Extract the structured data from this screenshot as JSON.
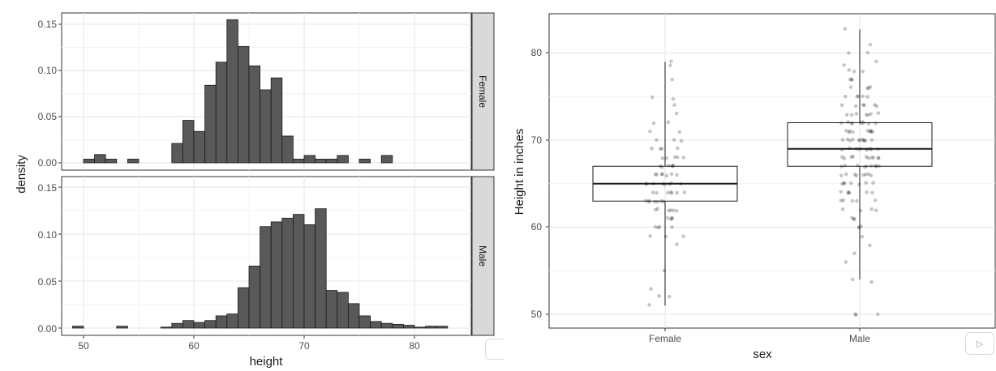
{
  "chart_data": [
    {
      "type": "histogram",
      "facet_by": "sex",
      "xlabel": "height",
      "ylabel": "density",
      "xlim": [
        47.5,
        85.5
      ],
      "ylim": [
        0,
        0.16
      ],
      "x_ticks": [
        50,
        60,
        70,
        80
      ],
      "y_ticks": [
        0.0,
        0.05,
        0.1,
        0.15
      ],
      "x_tick_labels": [
        "50",
        "60",
        "70",
        "80"
      ],
      "y_tick_labels": [
        "0.00",
        "0.05",
        "0.10",
        "0.15"
      ],
      "bin_width": 1,
      "bin_start": 49,
      "panels": [
        {
          "label": "Female",
          "densities": [
            0,
            0.004,
            0.009,
            0.004,
            0,
            0.004,
            0,
            0,
            0,
            0.021,
            0.046,
            0.034,
            0.084,
            0.109,
            0.155,
            0.126,
            0.105,
            0.079,
            0.092,
            0.029,
            0.004,
            0.008,
            0.004,
            0.004,
            0.008,
            0,
            0.004,
            0,
            0.008,
            0,
            0,
            0,
            0,
            0
          ]
        },
        {
          "label": "Male",
          "densities": [
            0.002,
            0,
            0,
            0,
            0.002,
            0,
            0,
            0,
            0.001,
            0.005,
            0.008,
            0.006,
            0.008,
            0.013,
            0.015,
            0.043,
            0.066,
            0.108,
            0.113,
            0.117,
            0.121,
            0.11,
            0.127,
            0.04,
            0.038,
            0.026,
            0.013,
            0.007,
            0.005,
            0.004,
            0.003,
            0.001,
            0.002,
            0.002
          ]
        }
      ]
    },
    {
      "type": "boxplot",
      "overlay": "jitter points",
      "xlabel": "sex",
      "ylabel": "Height in inches",
      "categories": [
        "Female",
        "Male"
      ],
      "ylim": [
        48.5,
        84.2
      ],
      "y_ticks": [
        50,
        60,
        70,
        80
      ],
      "y_tick_labels": [
        "50",
        "60",
        "70",
        "80"
      ],
      "boxes": [
        {
          "name": "Female",
          "q1": 63,
          "median": 65,
          "q3": 67,
          "whisker_low": 51,
          "whisker_high": 79
        },
        {
          "name": "Male",
          "q1": 67,
          "median": 69,
          "q3": 72,
          "whisker_low": 54,
          "whisker_high": 82.7
        }
      ],
      "points": [
        {
          "name": "Female",
          "values": [
            79,
            78.7,
            77,
            75,
            74.8,
            74,
            73,
            72,
            72,
            71,
            71,
            70,
            70,
            70,
            69,
            69,
            69,
            69,
            68,
            68,
            68,
            68,
            68,
            67,
            67,
            67,
            67,
            67,
            67,
            66,
            66,
            66,
            66,
            66,
            66,
            66,
            65,
            65,
            65,
            65,
            65,
            65,
            65,
            65,
            64,
            64,
            64,
            64,
            64,
            64,
            64,
            63,
            63,
            63,
            63,
            63,
            63,
            63,
            62,
            62,
            62,
            62,
            62,
            62,
            61,
            61,
            61,
            61,
            60,
            60,
            60,
            60,
            59,
            59,
            59,
            58,
            55,
            53,
            52,
            52,
            51
          ]
        },
        {
          "name": "Male",
          "values": [
            82.7,
            81,
            80,
            80,
            79,
            78.7,
            78,
            78,
            78,
            77,
            77,
            77,
            76,
            76,
            76,
            76,
            75,
            75,
            75,
            75,
            75,
            74,
            74,
            74,
            74,
            74,
            74,
            73,
            73,
            73,
            73,
            73,
            73,
            73,
            72,
            72,
            72,
            72,
            72,
            72,
            72,
            72,
            72,
            71,
            71,
            71,
            71,
            71,
            71,
            71,
            71,
            71,
            70,
            70,
            70,
            70,
            70,
            70,
            70,
            70,
            70,
            70,
            70,
            69,
            69,
            69,
            69,
            69,
            69,
            69,
            69,
            69,
            69,
            68,
            68,
            68,
            68,
            68,
            68,
            68,
            68,
            68,
            68,
            67,
            67,
            67,
            67,
            67,
            67,
            67,
            67,
            67,
            66,
            66,
            66,
            66,
            66,
            66,
            66,
            66,
            65,
            65,
            65,
            65,
            65,
            65,
            65,
            64,
            64,
            64,
            64,
            64,
            64,
            63,
            63,
            63,
            63,
            63,
            62,
            62,
            62,
            62,
            61,
            61,
            61,
            60,
            60,
            60,
            59,
            58,
            57,
            56,
            54,
            53.7,
            50,
            50,
            50
          ]
        }
      ]
    }
  ],
  "icons": {
    "prev_name": "previous-slide-icon",
    "next_name": "next-slide-icon",
    "next_glyph": "▷"
  }
}
